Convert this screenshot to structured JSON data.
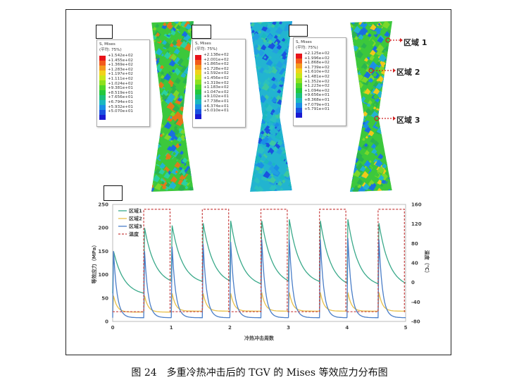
{
  "caption": "图 24　多重冷热冲击后的 TGV 的 Mises 等效应力分布图",
  "legends": [
    {
      "title": "S, Mises",
      "subtitle": "(平均: 75%)",
      "values": [
        "+1.542e+02",
        "+1.455e+02",
        "+1.369e+02",
        "+1.283e+02",
        "+1.197e+02",
        "+1.111e+02",
        "+1.024e+02",
        "+9.381e+01",
        "+8.519e+01",
        "+7.656e+01",
        "+6.794e+01",
        "+5.932e+01",
        "+5.070e+01"
      ]
    },
    {
      "title": "S, Mises",
      "subtitle": "(平均: 75%)",
      "values": [
        "+2.138e+02",
        "+2.001e+02",
        "+1.865e+02",
        "+1.728e+02",
        "+1.592e+02",
        "+1.456e+02",
        "+1.319e+02",
        "+1.183e+02",
        "+1.047e+02",
        "+9.102e+01",
        "+7.738e+01",
        "+6.374e+01",
        "+5.010e+01"
      ]
    },
    {
      "title": "S, Mises",
      "subtitle": "(平均: 75%)",
      "values": [
        "+2.125e+02",
        "+1.996e+02",
        "+1.868e+02",
        "+1.739e+02",
        "+1.610e+02",
        "+1.481e+02",
        "+1.352e+02",
        "+1.223e+02",
        "+1.094e+02",
        "+9.656e+01",
        "+8.368e+01",
        "+7.079e+01",
        "+5.791e+01"
      ]
    }
  ],
  "legend_colors": [
    "#e8141a",
    "#f25a1c",
    "#f49a1e",
    "#f2d21a",
    "#c8e81a",
    "#8ee01e",
    "#4fd62a",
    "#22c83c",
    "#1ac07c",
    "#1ab8c0",
    "#1a8ee6",
    "#1a52e0",
    "#1a1ad2"
  ],
  "annotations": [
    "区域 1",
    "区域 2",
    "区域 3"
  ],
  "chart_data": {
    "type": "line",
    "xlabel": "冷热冲击周数",
    "ylabel": "等效应力（MPa）",
    "y2label": "温度（℃）",
    "xlim": [
      0,
      5
    ],
    "ylim": [
      0,
      250
    ],
    "y2lim": [
      -80,
      160
    ],
    "xticks": [
      "0",
      "1",
      "2",
      "3",
      "4",
      "5"
    ],
    "yticks": [
      "0",
      "50",
      "100",
      "150",
      "200",
      "250"
    ],
    "y2ticks": [
      "-80",
      "-40",
      "0",
      "40",
      "80",
      "120",
      "160"
    ],
    "series": [
      {
        "name": "区域1",
        "color": "#3aa98a",
        "segment_peaks": [
          150,
          200,
          205,
          210,
          215,
          215,
          218,
          215,
          218,
          210
        ],
        "segment_ends": [
          60,
          85,
          85,
          85,
          80,
          85,
          85,
          80,
          80,
          80
        ]
      },
      {
        "name": "区域2",
        "color": "#e8c04a",
        "segment_peaks": [
          55,
          55,
          60,
          60,
          60,
          62,
          62,
          62,
          62,
          62
        ],
        "segment_ends": [
          20,
          20,
          22,
          22,
          22,
          22,
          22,
          22,
          22,
          22
        ]
      },
      {
        "name": "区域3",
        "color": "#4a7ec8",
        "segment_peaks": [
          150,
          150,
          160,
          165,
          170,
          175,
          175,
          175,
          178,
          175
        ],
        "segment_ends": [
          8,
          8,
          8,
          8,
          8,
          8,
          8,
          8,
          8,
          8
        ]
      },
      {
        "name": "温度",
        "color": "#c84040",
        "dashed": true,
        "low": -60,
        "high": 150,
        "high_intervals": [
          [
            0.53,
            0.98
          ],
          [
            1.53,
            1.98
          ],
          [
            2.53,
            2.98
          ],
          [
            3.53,
            3.98
          ],
          [
            4.53,
            4.98
          ]
        ]
      }
    ]
  }
}
